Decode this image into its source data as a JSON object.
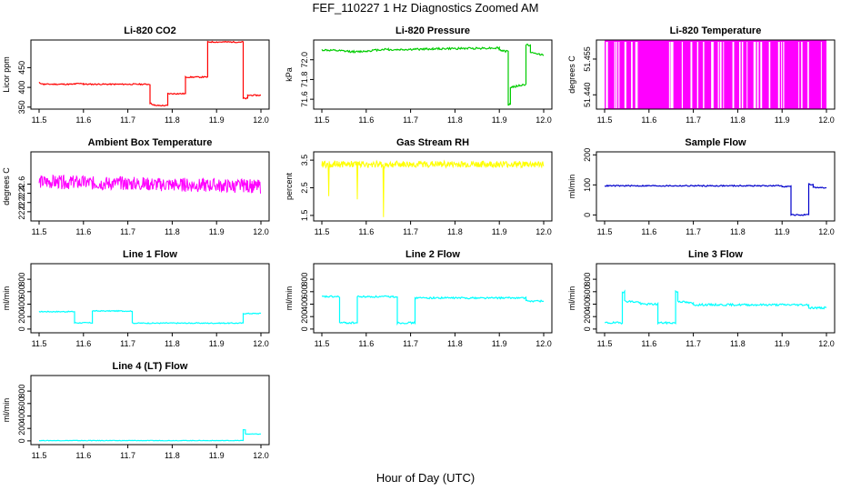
{
  "figure": {
    "title": "FEF_110227  1 Hz Diagnostics Zoomed AM",
    "xlabel": "Hour of Day (UTC)"
  },
  "chart_data": [
    {
      "type": "line",
      "title": "Li-820 CO2",
      "ylabel": "Licor ppm",
      "color": "#ff0000",
      "xlim": [
        11.5,
        12.0
      ],
      "ylim": [
        345,
        520
      ],
      "xticks": [
        "11.5",
        "11.6",
        "11.7",
        "11.8",
        "11.9",
        "12.0"
      ],
      "yticks": [
        {
          "v": 350,
          "label": "350"
        },
        {
          "v": 400,
          "label": "400"
        },
        {
          "v": 450,
          "label": "450"
        }
      ],
      "noise": 1.5,
      "seed": 11,
      "segments": [
        [
          11.5,
          11.51,
          412,
          408
        ],
        [
          11.51,
          11.58,
          408,
          408
        ],
        [
          11.58,
          11.6,
          409,
          410
        ],
        [
          11.6,
          11.75,
          408,
          408
        ],
        [
          11.75,
          11.76,
          360,
          355
        ],
        [
          11.76,
          11.79,
          354,
          354
        ],
        [
          11.79,
          11.81,
          384,
          384
        ],
        [
          11.81,
          11.83,
          384,
          384
        ],
        [
          11.83,
          11.87,
          426,
          426
        ],
        [
          11.87,
          11.88,
          426,
          426
        ],
        [
          11.88,
          11.96,
          515,
          515
        ],
        [
          11.96,
          11.97,
          372,
          372
        ],
        [
          11.97,
          12.0,
          380,
          380
        ]
      ]
    },
    {
      "type": "line",
      "title": "Li-820 Pressure",
      "ylabel": "kPa",
      "color": "#00cc00",
      "xlim": [
        11.5,
        12.0
      ],
      "ylim": [
        71.5,
        72.2
      ],
      "xticks": [
        "11.5",
        "11.6",
        "11.7",
        "11.8",
        "11.9",
        "12.0"
      ],
      "yticks": [
        {
          "v": 71.6,
          "label": "71.6"
        },
        {
          "v": 71.8,
          "label": "71.8"
        },
        {
          "v": 72.0,
          "label": "72.0"
        }
      ],
      "noise": 0.01,
      "seed": 12,
      "segments": [
        [
          11.5,
          11.58,
          72.1,
          72.08
        ],
        [
          11.58,
          11.65,
          72.08,
          72.11
        ],
        [
          11.65,
          11.75,
          72.1,
          72.11
        ],
        [
          11.75,
          11.9,
          72.11,
          72.12
        ],
        [
          11.9,
          11.92,
          72.1,
          72.08
        ],
        [
          11.92,
          11.925,
          71.55,
          71.55
        ],
        [
          11.925,
          11.96,
          71.72,
          71.75
        ],
        [
          11.96,
          11.97,
          72.15,
          72.15
        ],
        [
          11.97,
          12.0,
          72.07,
          72.05
        ]
      ]
    },
    {
      "type": "fill",
      "title": "Li-820 Temperature",
      "ylabel": "degrees C",
      "color": "#ff00ff",
      "xlim": [
        11.5,
        12.0
      ],
      "ylim": [
        51.434,
        51.463
      ],
      "xticks": [
        "11.5",
        "11.6",
        "11.7",
        "11.8",
        "11.9",
        "12.0"
      ],
      "yticks": [
        {
          "v": 51.44,
          "label": "51.440"
        },
        {
          "v": 51.455,
          "label": "51.455"
        }
      ],
      "fill_range": [
        11.5,
        12.0
      ],
      "gaps": 42,
      "seed": 13
    },
    {
      "type": "line",
      "title": "Ambient Box Temperature",
      "ylabel": "degrees C",
      "color": "#ff00ff",
      "xlim": [
        11.5,
        12.0
      ],
      "ylim": [
        21.8,
        23.3
      ],
      "xticks": [
        "11.5",
        "11.6",
        "11.7",
        "11.8",
        "11.9",
        "12.0"
      ],
      "yticks": [
        {
          "v": 22.0,
          "label": "22.0"
        },
        {
          "v": 22.2,
          "label": "22.2"
        },
        {
          "v": 22.4,
          "label": "22.4"
        },
        {
          "v": 22.6,
          "label": "22.6"
        }
      ],
      "noise": 0.15,
      "seed": 14,
      "dense": true,
      "segments": [
        [
          11.5,
          12.0,
          22.65,
          22.55
        ]
      ]
    },
    {
      "type": "line",
      "title": "Gas Stream RH",
      "ylabel": "percent",
      "color": "#ffff00",
      "xlim": [
        11.5,
        12.0
      ],
      "ylim": [
        1.3,
        3.8
      ],
      "xticks": [
        "11.5",
        "11.6",
        "11.7",
        "11.8",
        "11.9",
        "12.0"
      ],
      "yticks": [
        {
          "v": 1.5,
          "label": "1.5"
        },
        {
          "v": 2.5,
          "label": "2.5"
        },
        {
          "v": 3.5,
          "label": "3.5"
        }
      ],
      "noise": 0.12,
      "seed": 15,
      "dense": true,
      "spikes": 16,
      "spike_to": 1.4,
      "segments": [
        [
          11.5,
          12.0,
          3.35,
          3.35
        ]
      ]
    },
    {
      "type": "line",
      "title": "Sample Flow",
      "ylabel": "ml/min",
      "color": "#0000cc",
      "xlim": [
        11.5,
        12.0
      ],
      "ylim": [
        -20,
        210
      ],
      "xticks": [
        "11.5",
        "11.6",
        "11.7",
        "11.8",
        "11.9",
        "12.0"
      ],
      "yticks": [
        {
          "v": 0,
          "label": "0"
        },
        {
          "v": 100,
          "label": "100"
        },
        {
          "v": 200,
          "label": "200"
        }
      ],
      "noise": 2,
      "seed": 16,
      "segments": [
        [
          11.5,
          11.9,
          97,
          97
        ],
        [
          11.9,
          11.92,
          95,
          95
        ],
        [
          11.92,
          11.96,
          0,
          0
        ],
        [
          11.96,
          11.97,
          102,
          100
        ],
        [
          11.97,
          12.0,
          92,
          90
        ]
      ]
    },
    {
      "type": "line",
      "title": "Line 1 Flow",
      "ylabel": "ml/min",
      "color": "#00ffff",
      "xlim": [
        11.5,
        12.0
      ],
      "ylim": [
        -60,
        1050
      ],
      "xticks": [
        "11.5",
        "11.6",
        "11.7",
        "11.8",
        "11.9",
        "12.0"
      ],
      "yticks": [
        {
          "v": 0,
          "label": "0"
        },
        {
          "v": 200,
          "label": "200"
        },
        {
          "v": 400,
          "label": "400"
        },
        {
          "v": 600,
          "label": "600"
        },
        {
          "v": 800,
          "label": "800"
        }
      ],
      "noise": 8,
      "seed": 17,
      "segments": [
        [
          11.5,
          11.58,
          280,
          280
        ],
        [
          11.58,
          11.62,
          100,
          100
        ],
        [
          11.62,
          11.71,
          290,
          290
        ],
        [
          11.71,
          11.96,
          95,
          95
        ],
        [
          11.96,
          12.0,
          250,
          250
        ]
      ]
    },
    {
      "type": "line",
      "title": "Line 2 Flow",
      "ylabel": "ml/min",
      "color": "#00ffff",
      "xlim": [
        11.5,
        12.0
      ],
      "ylim": [
        -60,
        1050
      ],
      "xticks": [
        "11.5",
        "11.6",
        "11.7",
        "11.8",
        "11.9",
        "12.0"
      ],
      "yticks": [
        {
          "v": 0,
          "label": "0"
        },
        {
          "v": 200,
          "label": "200"
        },
        {
          "v": 400,
          "label": "400"
        },
        {
          "v": 600,
          "label": "600"
        },
        {
          "v": 800,
          "label": "800"
        }
      ],
      "noise": 14,
      "seed": 18,
      "segments": [
        [
          11.5,
          11.54,
          520,
          520
        ],
        [
          11.54,
          11.58,
          100,
          100
        ],
        [
          11.58,
          11.67,
          520,
          520
        ],
        [
          11.67,
          11.71,
          100,
          100
        ],
        [
          11.71,
          11.96,
          500,
          500
        ],
        [
          11.96,
          12.0,
          450,
          450
        ]
      ]
    },
    {
      "type": "line",
      "title": "Line 3 Flow",
      "ylabel": "ml/min",
      "color": "#00ffff",
      "xlim": [
        11.5,
        12.0
      ],
      "ylim": [
        -60,
        1050
      ],
      "xticks": [
        "11.5",
        "11.6",
        "11.7",
        "11.8",
        "11.9",
        "12.0"
      ],
      "yticks": [
        {
          "v": 0,
          "label": "0"
        },
        {
          "v": 200,
          "label": "200"
        },
        {
          "v": 400,
          "label": "400"
        },
        {
          "v": 600,
          "label": "600"
        },
        {
          "v": 800,
          "label": "800"
        }
      ],
      "noise": 16,
      "seed": 19,
      "segments": [
        [
          11.5,
          11.54,
          100,
          100
        ],
        [
          11.54,
          11.545,
          600,
          600
        ],
        [
          11.545,
          11.58,
          450,
          430
        ],
        [
          11.58,
          11.62,
          400,
          400
        ],
        [
          11.62,
          11.66,
          100,
          100
        ],
        [
          11.66,
          11.665,
          600,
          600
        ],
        [
          11.665,
          11.7,
          450,
          410
        ],
        [
          11.7,
          11.96,
          390,
          390
        ],
        [
          11.96,
          12.0,
          340,
          340
        ]
      ]
    },
    {
      "type": "line",
      "title": "Line 4 (LT) Flow",
      "ylabel": "ml/min",
      "color": "#00ffff",
      "xlim": [
        11.5,
        12.0
      ],
      "ylim": [
        -60,
        1050
      ],
      "xticks": [
        "11.5",
        "11.6",
        "11.7",
        "11.8",
        "11.9",
        "12.0"
      ],
      "yticks": [
        {
          "v": 0,
          "label": "0"
        },
        {
          "v": 200,
          "label": "200"
        },
        {
          "v": 400,
          "label": "400"
        },
        {
          "v": 600,
          "label": "600"
        },
        {
          "v": 800,
          "label": "800"
        }
      ],
      "noise": 4,
      "seed": 20,
      "segments": [
        [
          11.5,
          11.96,
          5,
          5
        ],
        [
          11.96,
          11.965,
          180,
          180
        ],
        [
          11.965,
          12.0,
          110,
          110
        ]
      ]
    }
  ]
}
